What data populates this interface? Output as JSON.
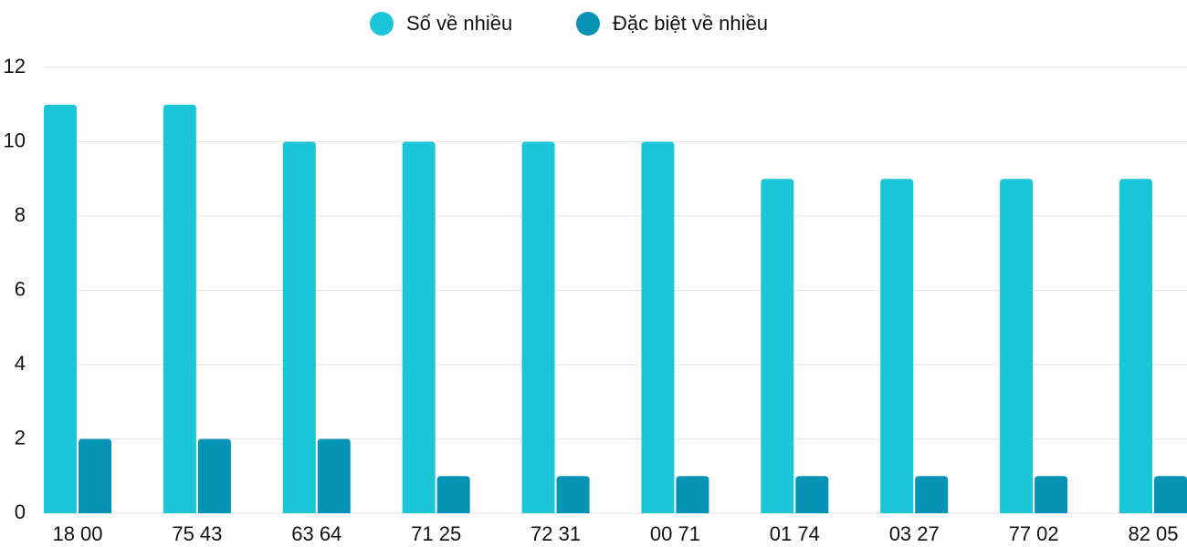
{
  "chart_data": {
    "type": "bar",
    "categories": [
      "18 00",
      "75 43",
      "63 64",
      "71 25",
      "72 31",
      "00 71",
      "01 74",
      "03 27",
      "77 02",
      "82 05"
    ],
    "series": [
      {
        "name": "Số về nhiều",
        "color": "#1ac6d8",
        "values": [
          11,
          11,
          10,
          10,
          10,
          10,
          9,
          9,
          9,
          9
        ]
      },
      {
        "name": "Đặc biệt về nhiều",
        "color": "#0793b5",
        "values": [
          2,
          2,
          2,
          1,
          1,
          1,
          1,
          1,
          1,
          1
        ]
      }
    ],
    "ylim": [
      0,
      12
    ],
    "yticks": [
      0,
      2,
      4,
      6,
      8,
      10,
      12
    ],
    "grid": true,
    "legend": "top"
  }
}
